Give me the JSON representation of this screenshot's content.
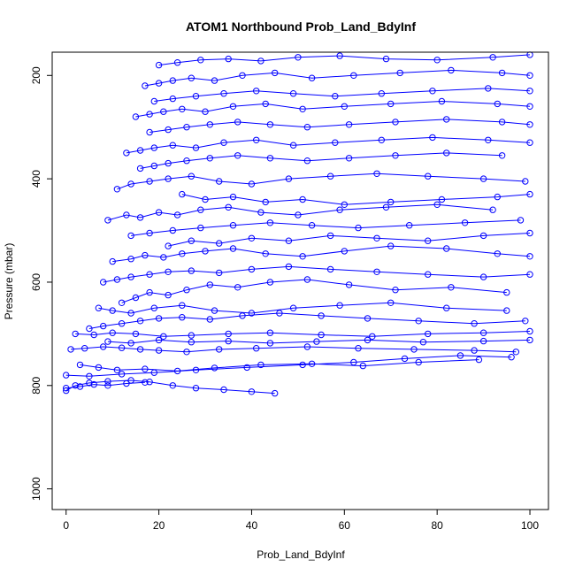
{
  "chart_data": {
    "type": "scatter",
    "title": "ATOM1 Northbound Prob_Land_BdyInf",
    "xlabel": "Prob_Land_BdyInf",
    "ylabel": "Pressure (mbar)",
    "xlim": [
      -3,
      104
    ],
    "ylim": [
      1040,
      155
    ],
    "y_reversed": true,
    "x_ticks": [
      0,
      20,
      40,
      60,
      80,
      100
    ],
    "y_ticks": [
      200,
      400,
      600,
      800,
      1000
    ],
    "grid": false,
    "marker": "open-circle",
    "connected": true,
    "series_color": "#0000ff",
    "series": [
      {
        "x": [
          0,
          2,
          5,
          9,
          14,
          18,
          23,
          28,
          34,
          40,
          45
        ],
        "y": [
          810,
          800,
          795,
          792,
          790,
          793,
          800,
          805,
          808,
          812,
          815
        ]
      },
      {
        "x": [
          1,
          4,
          8,
          12,
          16,
          20,
          26,
          33,
          41,
          52,
          63,
          75,
          88,
          97
        ],
        "y": [
          730,
          728,
          725,
          727,
          730,
          732,
          735,
          730,
          728,
          725,
          728,
          730,
          732,
          735
        ]
      },
      {
        "x": [
          2,
          6,
          10,
          15,
          21,
          27,
          35,
          44,
          55,
          66,
          78,
          90,
          100
        ],
        "y": [
          700,
          702,
          698,
          700,
          705,
          703,
          700,
          698,
          702,
          705,
          700,
          698,
          695
        ]
      },
      {
        "x": [
          3,
          7,
          11,
          17,
          24,
          32,
          42,
          53,
          64,
          76,
          89
        ],
        "y": [
          760,
          765,
          770,
          768,
          772,
          766,
          760,
          758,
          762,
          755,
          750
        ]
      },
      {
        "x": [
          0,
          5,
          12,
          19,
          28,
          39,
          51,
          62,
          73,
          85,
          96
        ],
        "y": [
          780,
          782,
          778,
          775,
          770,
          765,
          760,
          755,
          748,
          742,
          745
        ]
      },
      {
        "x": [
          12,
          15,
          18,
          22,
          26,
          31,
          37,
          44,
          52,
          61,
          71,
          83,
          95
        ],
        "y": [
          640,
          630,
          620,
          625,
          615,
          605,
          610,
          600,
          595,
          605,
          615,
          610,
          620
        ]
      },
      {
        "x": [
          10,
          14,
          17,
          21,
          25,
          30,
          36,
          43,
          51,
          60,
          70,
          82,
          93,
          100
        ],
        "y": [
          560,
          555,
          548,
          552,
          545,
          540,
          535,
          545,
          550,
          540,
          530,
          535,
          545,
          550
        ]
      },
      {
        "x": [
          9,
          13,
          16,
          20,
          24,
          29,
          35,
          42,
          50,
          59,
          69,
          80,
          92
        ],
        "y": [
          480,
          470,
          475,
          465,
          470,
          460,
          455,
          465,
          470,
          460,
          455,
          450,
          460
        ]
      },
      {
        "x": [
          11,
          14,
          18,
          22,
          27,
          33,
          40,
          48,
          57,
          67,
          78,
          90,
          99
        ],
        "y": [
          420,
          410,
          405,
          400,
          395,
          405,
          410,
          400,
          395,
          390,
          395,
          400,
          405
        ]
      },
      {
        "x": [
          13,
          16,
          19,
          23,
          28,
          34,
          41,
          49,
          58,
          68,
          79,
          91,
          100
        ],
        "y": [
          350,
          345,
          340,
          335,
          340,
          330,
          325,
          335,
          330,
          325,
          320,
          325,
          330
        ]
      },
      {
        "x": [
          15,
          18,
          21,
          25,
          30,
          36,
          43,
          51,
          60,
          70,
          81,
          93,
          100
        ],
        "y": [
          280,
          275,
          270,
          265,
          270,
          260,
          255,
          265,
          260,
          255,
          250,
          255,
          260
        ]
      },
      {
        "x": [
          17,
          20,
          23,
          27,
          32,
          38,
          45,
          53,
          62,
          72,
          83,
          94,
          100
        ],
        "y": [
          220,
          215,
          210,
          205,
          210,
          200,
          195,
          205,
          200,
          195,
          190,
          195,
          200
        ]
      },
      {
        "x": [
          20,
          24,
          29,
          35,
          42,
          50,
          59,
          69,
          80,
          92,
          100
        ],
        "y": [
          180,
          175,
          170,
          168,
          172,
          165,
          162,
          168,
          170,
          165,
          160
        ]
      },
      {
        "x": [
          5,
          8,
          12,
          16,
          20,
          25,
          31,
          38,
          46,
          55,
          65,
          76,
          88,
          99
        ],
        "y": [
          690,
          685,
          680,
          675,
          670,
          668,
          672,
          665,
          660,
          665,
          670,
          675,
          680,
          675
        ]
      },
      {
        "x": [
          8,
          11,
          14,
          18,
          22,
          27,
          33,
          40,
          48,
          57,
          67,
          78,
          90,
          100
        ],
        "y": [
          600,
          595,
          590,
          585,
          580,
          578,
          582,
          575,
          570,
          575,
          580,
          585,
          590,
          585
        ]
      },
      {
        "x": [
          14,
          18,
          23,
          29,
          36,
          44,
          53,
          63,
          74,
          86,
          98
        ],
        "y": [
          510,
          505,
          500,
          495,
          490,
          485,
          490,
          495,
          490,
          485,
          480
        ]
      },
      {
        "x": [
          16,
          19,
          22,
          26,
          31,
          37,
          44,
          52,
          61,
          71,
          82,
          94
        ],
        "y": [
          380,
          375,
          370,
          365,
          360,
          355,
          360,
          365,
          360,
          355,
          350,
          355
        ]
      },
      {
        "x": [
          18,
          22,
          26,
          31,
          37,
          44,
          52,
          61,
          71,
          82,
          94,
          100
        ],
        "y": [
          310,
          305,
          300,
          295,
          290,
          295,
          300,
          295,
          290,
          285,
          290,
          295
        ]
      },
      {
        "x": [
          19,
          23,
          28,
          34,
          41,
          49,
          58,
          68,
          79,
          91,
          100
        ],
        "y": [
          250,
          245,
          240,
          235,
          230,
          235,
          240,
          235,
          230,
          225,
          230
        ]
      },
      {
        "x": [
          9,
          14,
          20,
          27,
          35,
          44,
          54,
          65,
          77,
          90,
          100
        ],
        "y": [
          715,
          718,
          712,
          716,
          714,
          718,
          715,
          712,
          716,
          714,
          712
        ]
      },
      {
        "x": [
          0,
          3,
          6,
          9,
          13,
          17
        ],
        "y": [
          805,
          802,
          798,
          800,
          796,
          794
        ]
      },
      {
        "x": [
          25,
          30,
          36,
          43,
          51,
          60,
          70,
          81,
          93,
          100
        ],
        "y": [
          430,
          440,
          435,
          445,
          440,
          450,
          445,
          440,
          435,
          430
        ]
      },
      {
        "x": [
          7,
          10,
          14,
          19,
          25,
          32,
          40,
          49,
          59,
          70,
          82,
          95
        ],
        "y": [
          650,
          655,
          660,
          650,
          645,
          655,
          660,
          650,
          645,
          640,
          650,
          655
        ]
      },
      {
        "x": [
          22,
          27,
          33,
          40,
          48,
          57,
          67,
          78,
          90,
          100
        ],
        "y": [
          530,
          520,
          525,
          515,
          520,
          510,
          515,
          520,
          510,
          505
        ]
      }
    ]
  }
}
